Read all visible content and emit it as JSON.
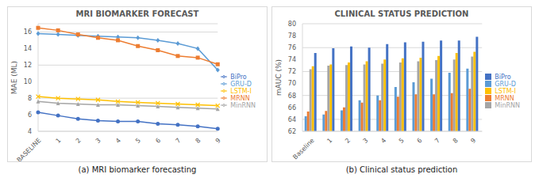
{
  "chart_data": [
    {
      "type": "line",
      "title": "MRI BIOMARKER FORECAST",
      "caption": "(a) MRI biomarker forecasting",
      "y_label": "MAE (ML)",
      "categories": [
        "BASELINE",
        "1",
        "2",
        "3",
        "4",
        "5",
        "6",
        "7",
        "8",
        "9"
      ],
      "series": [
        {
          "name": "GRU-D",
          "color": "#5b9bd5",
          "marker": "diamond",
          "values": [
            15.8,
            15.7,
            15.6,
            15.5,
            15.4,
            15.3,
            15.0,
            14.6,
            14.0,
            11.4
          ]
        },
        {
          "name": "MRNN",
          "color": "#ed7d31",
          "marker": "square",
          "values": [
            16.5,
            16.2,
            15.7,
            15.3,
            15.0,
            14.3,
            13.8,
            13.1,
            12.9,
            12.1
          ]
        },
        {
          "name": "MinRNN",
          "color": "#a5a5a5",
          "marker": "triangle",
          "values": [
            7.6,
            7.4,
            7.3,
            7.2,
            7.2,
            7.1,
            7.0,
            6.9,
            6.8,
            6.7
          ]
        },
        {
          "name": "LSTM-I",
          "color": "#ffc000",
          "marker": "x",
          "values": [
            8.2,
            8.0,
            7.9,
            7.8,
            7.6,
            7.5,
            7.4,
            7.3,
            7.2,
            7.1
          ]
        },
        {
          "name": "BiPro",
          "color": "#4472c4",
          "marker": "circle",
          "values": [
            6.3,
            5.9,
            5.5,
            5.3,
            5.2,
            5.2,
            4.9,
            4.8,
            4.6,
            4.3
          ]
        }
      ],
      "ylim": [
        4,
        17
      ],
      "yticks": [
        4,
        6,
        8,
        10,
        12,
        14,
        16
      ],
      "grid": true,
      "legend": "right"
    },
    {
      "type": "bar",
      "title": "CLINICAL STATUS PREDICTION",
      "caption": "(b) Clinical status prediction",
      "y_label": "mAUC (%)",
      "categories": [
        "Baseline",
        "1",
        "2",
        "3",
        "4",
        "5",
        "6",
        "7",
        "8",
        "9"
      ],
      "series": [
        {
          "name": "GRU-D",
          "color": "#5b9bd5",
          "values": [
            64.5,
            64.8,
            65.5,
            67.2,
            68.0,
            69.4,
            70.2,
            70.8,
            71.8,
            72.5
          ]
        },
        {
          "name": "MRNN",
          "color": "#ed7d31",
          "values": [
            65.3,
            65.4,
            66.0,
            66.8,
            67.2,
            67.8,
            68.2,
            68.2,
            68.4,
            69.1
          ]
        },
        {
          "name": "MinRNN",
          "color": "#a5a5a5",
          "values": [
            72.4,
            73.0,
            73.1,
            73.2,
            73.3,
            73.5,
            73.7,
            73.9,
            74.0,
            74.5
          ]
        },
        {
          "name": "LSTM-I",
          "color": "#ffc000",
          "values": [
            72.9,
            73.2,
            73.5,
            73.7,
            74.0,
            74.2,
            74.3,
            74.6,
            75.1,
            75.3
          ]
        },
        {
          "name": "BiPro",
          "color": "#4472c4",
          "values": [
            75.1,
            75.9,
            76.2,
            76.0,
            76.6,
            76.9,
            77.0,
            77.2,
            77.2,
            77.8
          ]
        }
      ],
      "ylim": [
        62,
        80
      ],
      "yticks": [
        62,
        64,
        66,
        68,
        70,
        72,
        74,
        76,
        78,
        80
      ],
      "grid": true,
      "legend": "right"
    }
  ]
}
